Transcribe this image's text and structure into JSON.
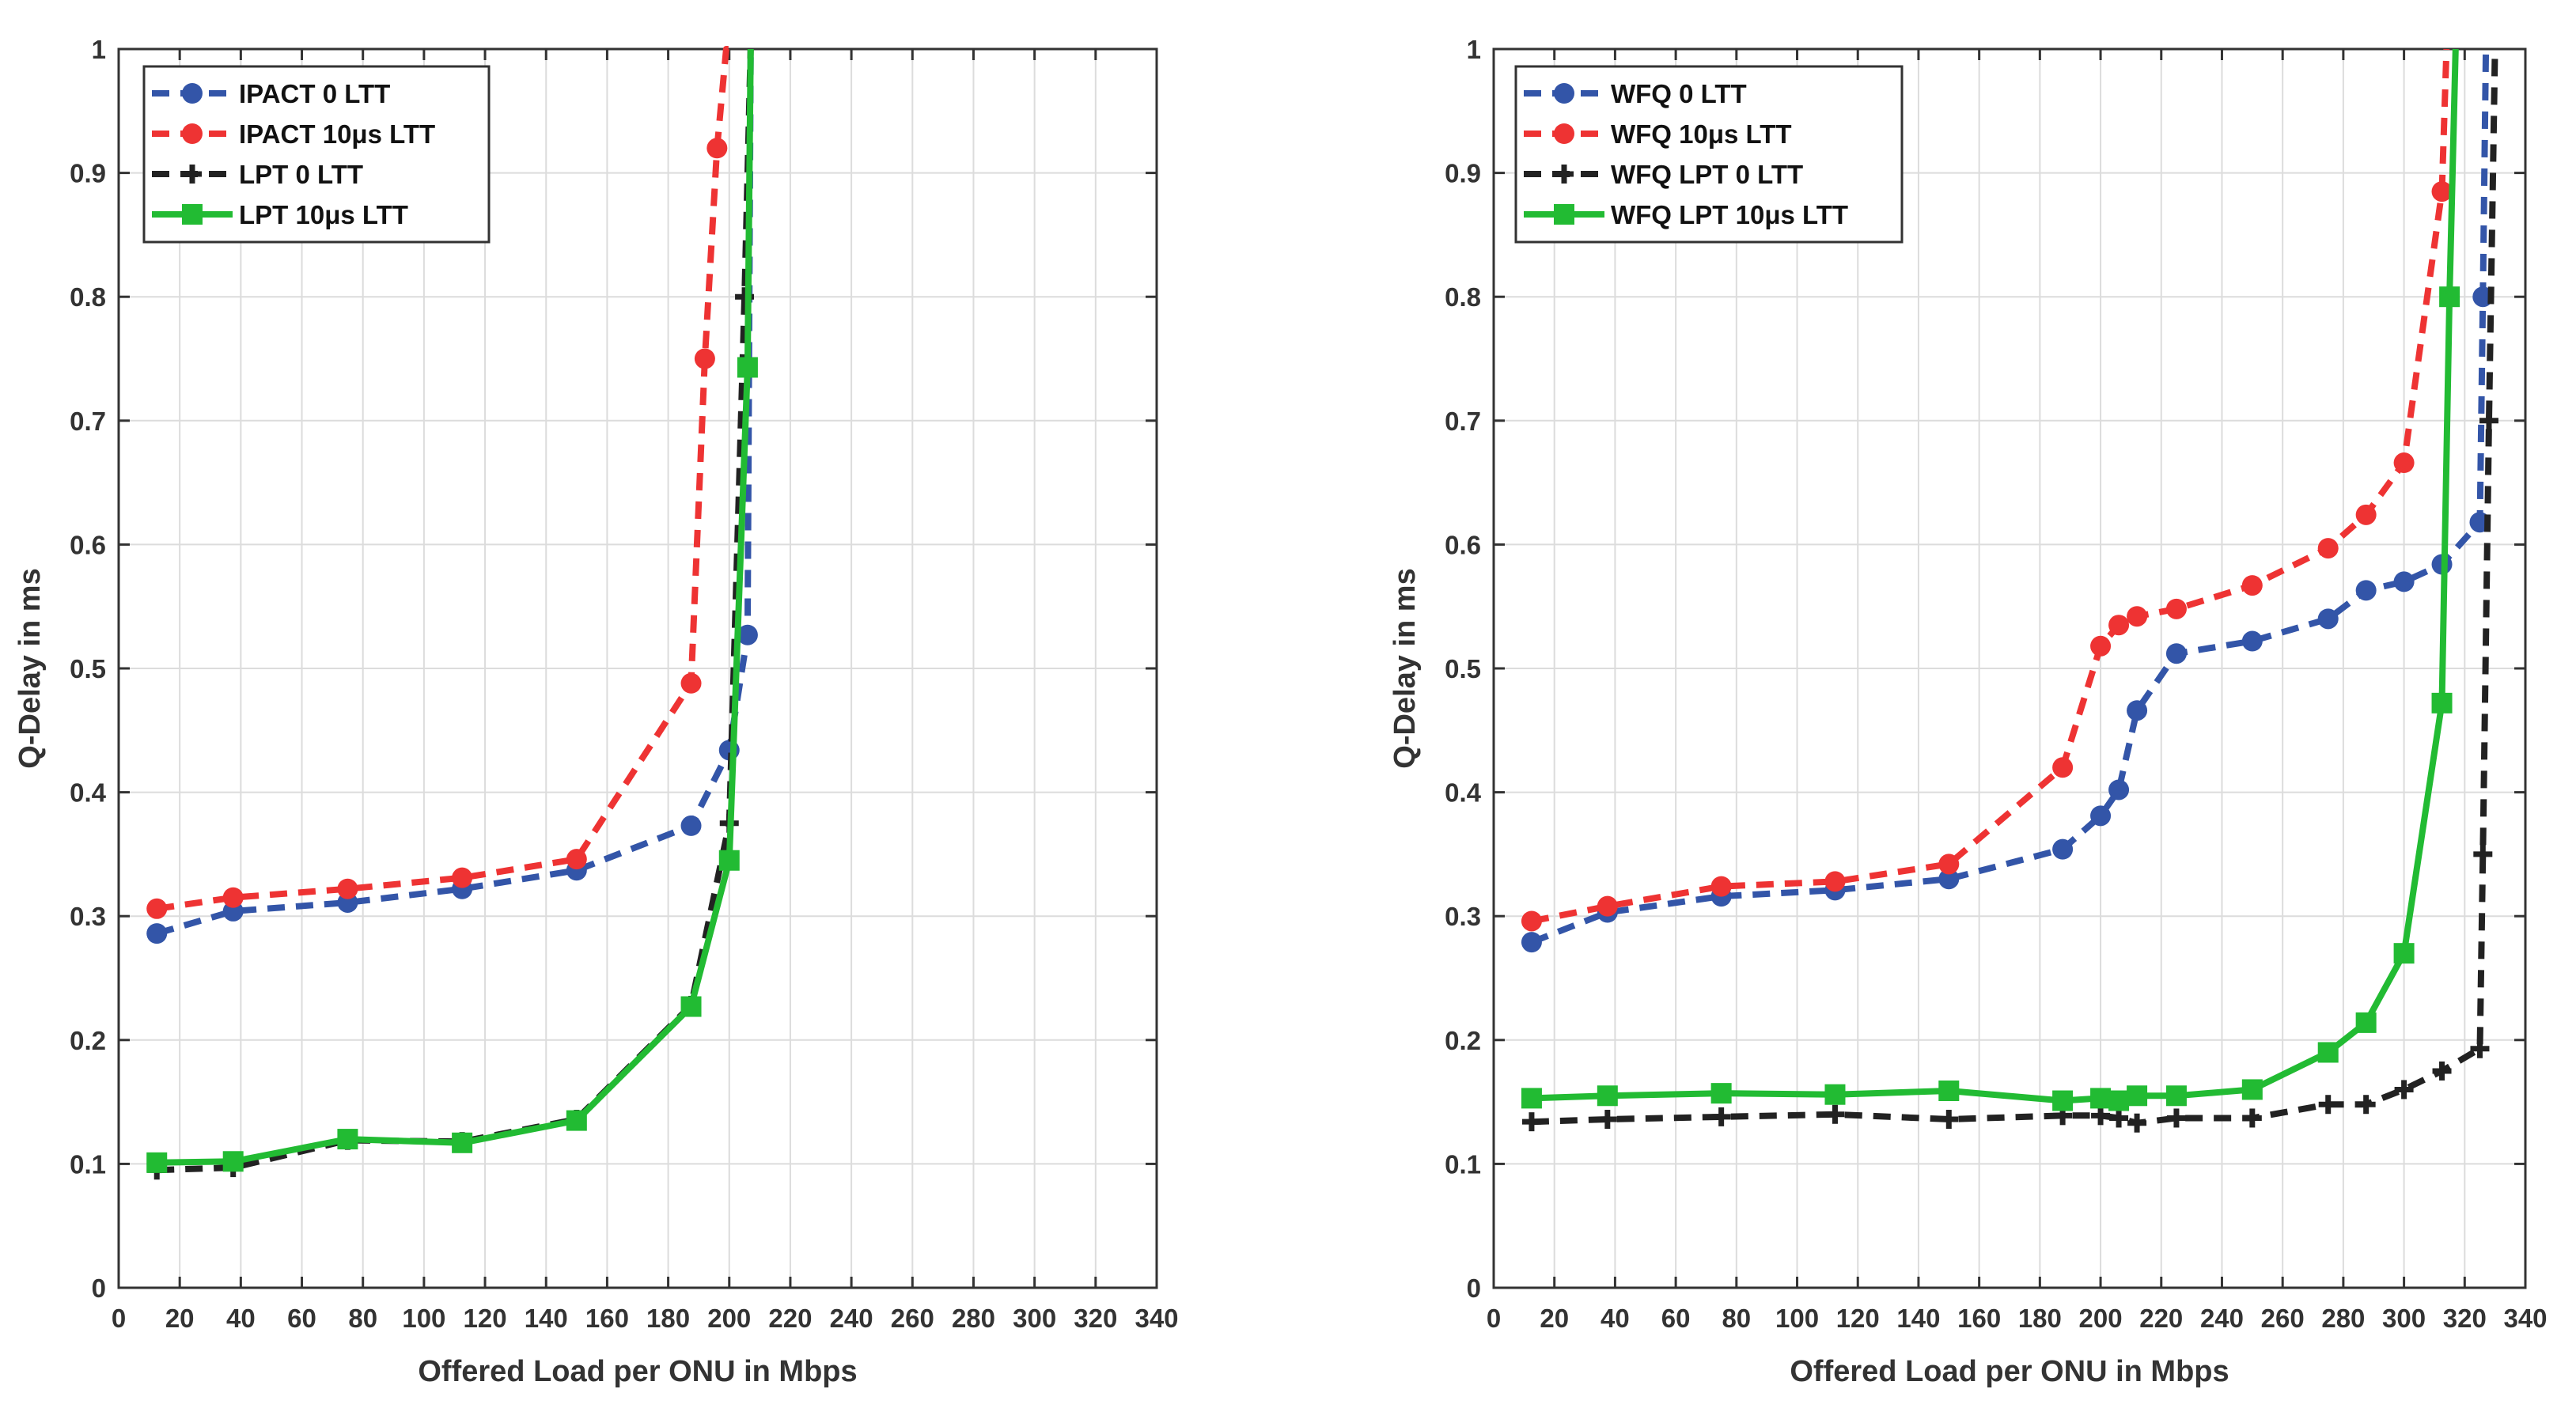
{
  "chart_data": [
    {
      "type": "line",
      "xlabel": "Offered Load per ONU in Mbps",
      "ylabel": "Q-Delay in ms",
      "xlim": [
        0,
        340
      ],
      "ylim": [
        0,
        1
      ],
      "x_ticks": [
        "0",
        "20",
        "40",
        "60",
        "80",
        "100",
        "120",
        "140",
        "160",
        "180",
        "200",
        "220",
        "240",
        "260",
        "280",
        "300",
        "320",
        "340"
      ],
      "y_ticks": [
        "0",
        "0.1",
        "0.2",
        "0.3",
        "0.4",
        "0.5",
        "0.6",
        "0.7",
        "0.8",
        "0.9",
        "1"
      ],
      "grid": true,
      "legend_position": "top-left",
      "series": [
        {
          "name": "IPACT 0 LTT",
          "color": "#3355a8",
          "marker": "circle",
          "line": "dashed",
          "x": [
            12.5,
            37.5,
            75,
            112.5,
            150,
            187.5,
            200,
            206,
            207
          ],
          "y": [
            0.286,
            0.304,
            0.311,
            0.322,
            0.337,
            0.373,
            0.434,
            0.527,
            1.0
          ]
        },
        {
          "name": "IPACT 10μs LTT",
          "color": "#ee3333",
          "marker": "circle",
          "line": "dashed",
          "x": [
            12.5,
            37.5,
            75,
            112.5,
            150,
            187.5,
            192,
            196,
            199,
            200
          ],
          "y": [
            0.306,
            0.315,
            0.322,
            0.331,
            0.346,
            0.488,
            0.75,
            0.92,
            1.0,
            1.0
          ]
        },
        {
          "name": "LPT 0 LTT",
          "color": "#222222",
          "marker": "plus",
          "line": "dashed",
          "x": [
            12.5,
            37.5,
            75,
            112.5,
            150,
            187.5,
            200,
            205,
            207
          ],
          "y": [
            0.095,
            0.097,
            0.119,
            0.118,
            0.136,
            0.228,
            0.375,
            0.8,
            1.0
          ]
        },
        {
          "name": "LPT 10μs LTT",
          "color": "#22bb33",
          "marker": "square",
          "line": "solid",
          "x": [
            12.5,
            37.5,
            75,
            112.5,
            150,
            187.5,
            200,
            206,
            207
          ],
          "y": [
            0.101,
            0.102,
            0.12,
            0.117,
            0.135,
            0.227,
            0.345,
            0.743,
            1.0
          ]
        }
      ]
    },
    {
      "type": "line",
      "xlabel": "Offered Load per ONU in Mbps",
      "ylabel": "Q-Delay in ms",
      "xlim": [
        0,
        340
      ],
      "ylim": [
        0,
        1
      ],
      "x_ticks": [
        "0",
        "20",
        "40",
        "60",
        "80",
        "100",
        "120",
        "140",
        "160",
        "180",
        "200",
        "220",
        "240",
        "260",
        "280",
        "300",
        "320",
        "340"
      ],
      "y_ticks": [
        "0",
        "0.1",
        "0.2",
        "0.3",
        "0.4",
        "0.5",
        "0.6",
        "0.7",
        "0.8",
        "0.9",
        "1"
      ],
      "grid": true,
      "legend_position": "top-left",
      "series": [
        {
          "name": "WFQ 0 LTT",
          "color": "#3355a8",
          "marker": "circle",
          "line": "dashed",
          "x": [
            12.5,
            37.5,
            75,
            112.5,
            150,
            187.5,
            200,
            206,
            212,
            225,
            250,
            275,
            287.5,
            300,
            312.5,
            325,
            326,
            327
          ],
          "y": [
            0.279,
            0.303,
            0.316,
            0.321,
            0.33,
            0.354,
            0.381,
            0.402,
            0.466,
            0.512,
            0.522,
            0.54,
            0.563,
            0.57,
            0.584,
            0.618,
            0.8,
            1.0
          ]
        },
        {
          "name": "WFQ 10μs LTT",
          "color": "#ee3333",
          "marker": "circle",
          "line": "dashed",
          "x": [
            12.5,
            37.5,
            75,
            112.5,
            150,
            187.5,
            200,
            206,
            212,
            225,
            250,
            275,
            287.5,
            300,
            312.5,
            314
          ],
          "y": [
            0.296,
            0.308,
            0.324,
            0.328,
            0.342,
            0.42,
            0.518,
            0.535,
            0.542,
            0.548,
            0.567,
            0.597,
            0.624,
            0.666,
            0.885,
            1.0
          ]
        },
        {
          "name": "WFQ LPT 0 LTT",
          "color": "#222222",
          "marker": "plus",
          "line": "dashed",
          "x": [
            12.5,
            37.5,
            75,
            112.5,
            150,
            187.5,
            200,
            206,
            212,
            225,
            250,
            275,
            287.5,
            300,
            312.5,
            325,
            326,
            328,
            330
          ],
          "y": [
            0.134,
            0.136,
            0.138,
            0.14,
            0.136,
            0.139,
            0.139,
            0.137,
            0.133,
            0.137,
            0.137,
            0.148,
            0.148,
            0.16,
            0.175,
            0.193,
            0.35,
            0.7,
            1.0
          ]
        },
        {
          "name": "WFQ LPT 10μs LTT",
          "color": "#22bb33",
          "marker": "square",
          "line": "solid",
          "x": [
            12.5,
            37.5,
            75,
            112.5,
            150,
            187.5,
            200,
            206,
            212,
            225,
            250,
            275,
            287.5,
            300,
            312.5,
            315,
            317
          ],
          "y": [
            0.153,
            0.155,
            0.157,
            0.156,
            0.159,
            0.151,
            0.153,
            0.151,
            0.155,
            0.155,
            0.16,
            0.19,
            0.214,
            0.27,
            0.472,
            0.8,
            1.0
          ]
        }
      ]
    }
  ]
}
